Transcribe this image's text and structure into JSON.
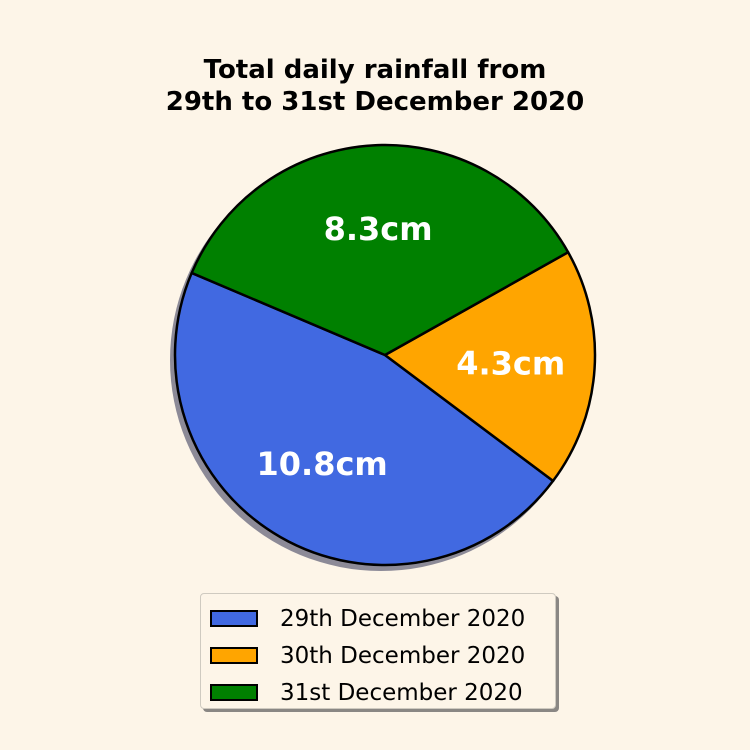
{
  "chart_data": {
    "type": "pie",
    "title_lines": [
      "Total daily rainfall from",
      "29th to 31st December 2020"
    ],
    "slices": [
      {
        "label": "29th December 2020",
        "value": 10.8,
        "value_label": "10.8cm",
        "color": "#4169e1"
      },
      {
        "label": "30th December 2020",
        "value": 4.3,
        "value_label": "4.3cm",
        "color": "#ffa500"
      },
      {
        "label": "31st December 2020",
        "value": 8.3,
        "value_label": "8.3cm",
        "color": "#008000"
      }
    ],
    "start_angle_deg": 157,
    "direction": "counterclockwise",
    "shadow": true,
    "legend_position": "bottom-center"
  }
}
